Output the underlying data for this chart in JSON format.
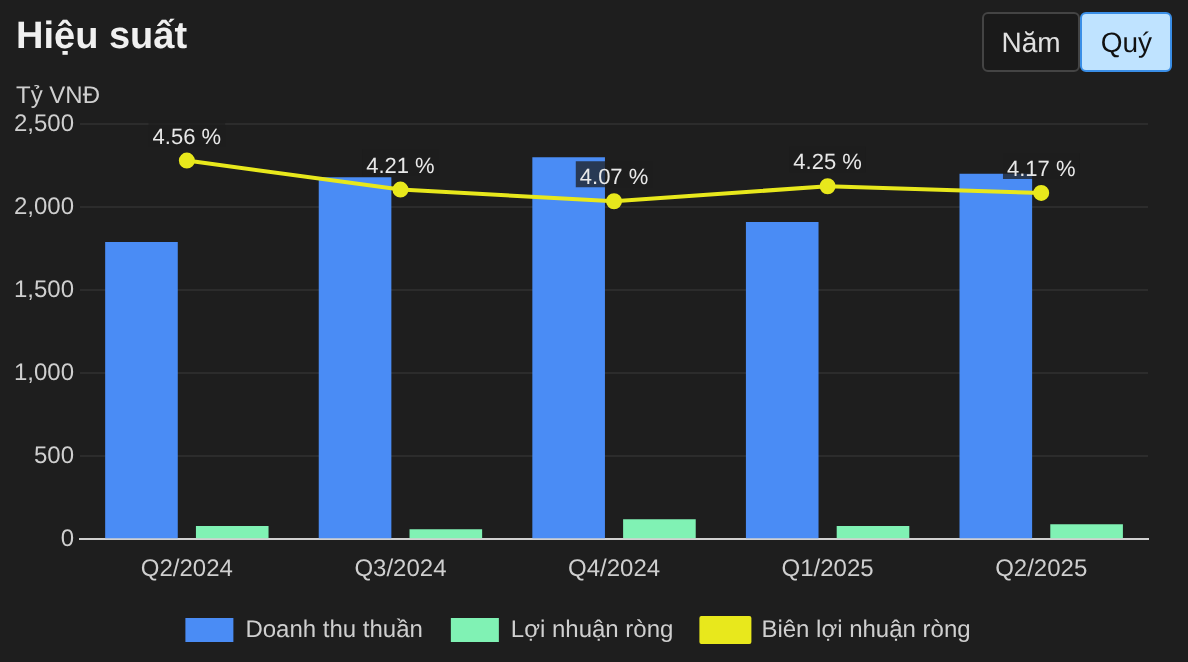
{
  "chart_data": {
    "type": "bar",
    "title": "Hiệu suất",
    "ylabel": "Tỷ VNĐ",
    "annotations": [
      "Năm",
      "Quý"
    ],
    "categories": [
      "Q2/2024",
      "Q3/2024",
      "Q4/2024",
      "Q1/2025",
      "Q2/2025"
    ],
    "series": [
      {
        "name": "Doanh thu thuần",
        "color": "#4a8cf5",
        "values": [
          1790,
          2180,
          2300,
          1910,
          2200
        ]
      },
      {
        "name": "Lợi nhuận ròng",
        "color": "#80f2b4",
        "values": [
          80,
          60,
          120,
          80,
          90
        ]
      },
      {
        "name": "Biên lợi nhuận ròng",
        "type": "line",
        "axis": "y2",
        "color": "#e8e81c",
        "values": [
          4.56,
          4.21,
          4.07,
          4.25,
          4.17
        ],
        "value_labels": [
          "4.56 %",
          "4.21 %",
          "4.07 %",
          "4.25 %",
          "4.17 %"
        ]
      }
    ],
    "ylim": [
      0,
      2500
    ],
    "yticks": [
      0,
      500,
      {
        "value": 1000,
        "label": "1,000"
      },
      {
        "value": 1500,
        "label": "1,500"
      },
      {
        "value": 2000,
        "label": "2,000"
      },
      {
        "value": 2500,
        "label": "2,500"
      }
    ],
    "y2lim": [
      0,
      5
    ],
    "tick_labels": [
      "x",
      "y"
    ],
    "grid": "y",
    "legend": "bottom",
    "marker": "circle",
    "line_style": "solid"
  }
}
